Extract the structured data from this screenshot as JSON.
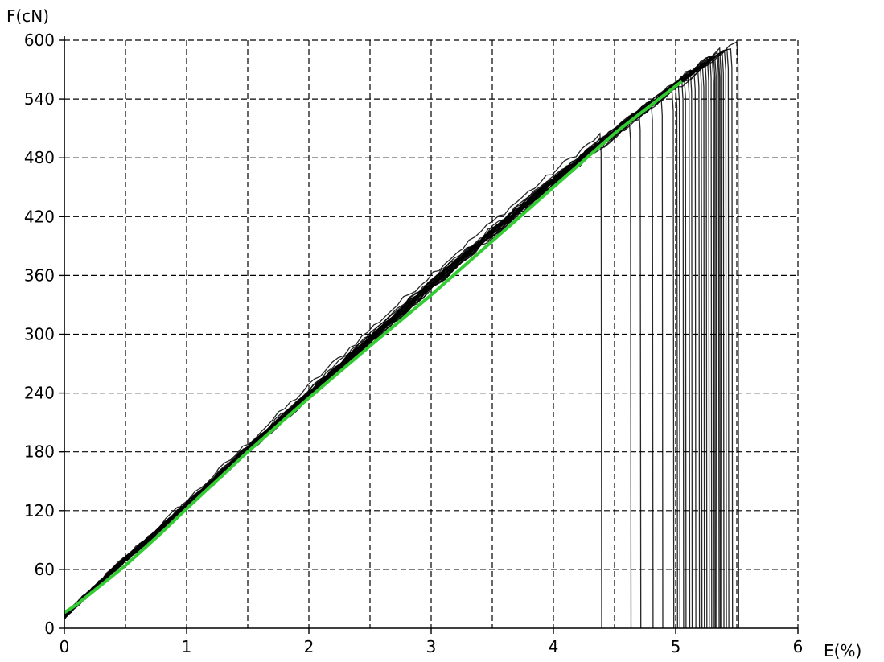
{
  "chart_data": {
    "type": "line",
    "xlabel": "E(%)",
    "ylabel": "F(cN)",
    "xlim": [
      0,
      6
    ],
    "ylim": [
      0,
      600
    ],
    "x_ticks": [
      0,
      1,
      2,
      3,
      4,
      5,
      6
    ],
    "x_tick_labels": [
      "0",
      "1",
      "2",
      "3",
      "4",
      "5",
      "6"
    ],
    "y_ticks": [
      0,
      60,
      120,
      180,
      240,
      300,
      360,
      420,
      480,
      540,
      600
    ],
    "y_tick_labels": [
      "0",
      "60",
      "120",
      "180",
      "240",
      "300",
      "360",
      "420",
      "480",
      "540",
      "600"
    ],
    "grid": true,
    "grid_style": "dashed",
    "x_minor_grid_step": 0.5,
    "colors": {
      "tests": "#000000",
      "average": "#33cc33",
      "grid": "#000000"
    },
    "series": [
      {
        "role": "average",
        "color": "#33cc33",
        "x": [
          0.0,
          0.1,
          0.2,
          0.3,
          0.5,
          0.8,
          1.0,
          1.5,
          2.0,
          2.5,
          3.0,
          3.5,
          4.0,
          4.5,
          5.05
        ],
        "y": [
          16,
          24,
          34,
          44,
          64,
          98,
          122,
          180,
          235,
          288,
          340,
          395,
          450,
          505,
          558
        ]
      }
    ],
    "tests": {
      "count": 30,
      "color": "#000000",
      "break_strain": [
        4.38,
        4.62,
        4.7,
        4.8,
        4.88,
        4.97,
        5.0,
        5.02,
        5.05,
        5.07,
        5.1,
        5.12,
        5.15,
        5.18,
        5.2,
        5.22,
        5.24,
        5.26,
        5.28,
        5.3,
        5.31,
        5.32,
        5.34,
        5.35,
        5.36,
        5.38,
        5.4,
        5.42,
        5.45,
        5.5
      ],
      "peak_force": [
        505,
        520,
        530,
        540,
        545,
        550,
        555,
        560,
        562,
        565,
        568,
        570,
        572,
        575,
        578,
        575,
        580,
        582,
        585,
        580,
        586,
        588,
        590,
        585,
        592,
        590,
        593,
        595,
        596,
        600
      ]
    }
  }
}
